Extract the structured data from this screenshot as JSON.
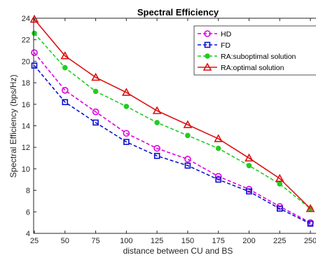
{
  "chart_data": {
    "type": "line",
    "title": "Spectral Efficiency",
    "xlabel": "distance between CU and BS",
    "ylabel": "Spectral Efficiency (bps/Hz)",
    "x": [
      25,
      50,
      75,
      100,
      125,
      150,
      175,
      200,
      225,
      250
    ],
    "xlim": [
      25,
      250
    ],
    "ylim": [
      4,
      24
    ],
    "xticks": [
      25,
      50,
      75,
      100,
      125,
      150,
      175,
      200,
      225,
      250
    ],
    "yticks": [
      4,
      6,
      8,
      10,
      12,
      14,
      16,
      18,
      20,
      22,
      24
    ],
    "grid": false,
    "legend_position": "top-right",
    "series": [
      {
        "name": "HD",
        "color": "#e000e0",
        "line": "dashed",
        "marker": "circle",
        "values": [
          20.8,
          17.3,
          15.3,
          13.3,
          11.9,
          10.9,
          9.3,
          8.1,
          6.5,
          5.0
        ]
      },
      {
        "name": "FD",
        "color": "#1010d0",
        "line": "dashed",
        "marker": "square",
        "values": [
          19.6,
          16.2,
          14.3,
          12.5,
          11.2,
          10.3,
          9.0,
          7.9,
          6.3,
          4.9
        ]
      },
      {
        "name": "RA:suboptimal solution",
        "color": "#22cc22",
        "line": "dashed",
        "marker": "star",
        "values": [
          22.6,
          19.4,
          17.2,
          15.8,
          14.3,
          13.1,
          11.9,
          10.3,
          8.6,
          6.3
        ]
      },
      {
        "name": "RA:optimal solution",
        "color": "#dd1111",
        "line": "solid",
        "marker": "triangle",
        "values": [
          23.9,
          20.5,
          18.5,
          17.1,
          15.4,
          14.1,
          12.8,
          11.0,
          9.1,
          6.3
        ]
      }
    ]
  }
}
